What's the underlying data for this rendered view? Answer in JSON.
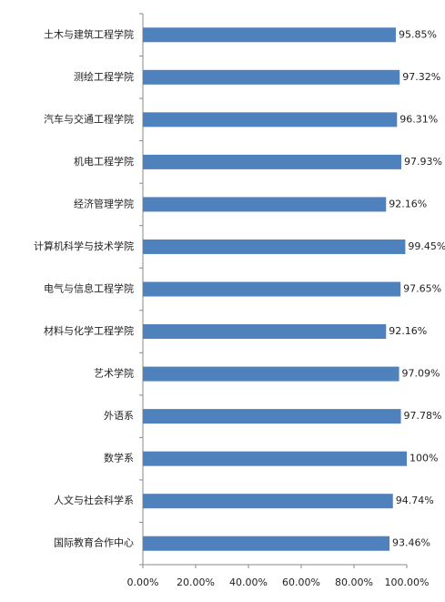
{
  "chart_data": {
    "type": "bar",
    "orientation": "horizontal",
    "color": "#4f81bd",
    "grid": false,
    "categories": [
      "土木与建筑工程学院",
      "测绘工程学院",
      "汽车与交通工程学院",
      "机电工程学院",
      "经济管理学院",
      "计算机科学与技术学院",
      "电气与信息工程学院",
      "材料与化学工程学院",
      "艺术学院",
      "外语系",
      "数学系",
      "人文与社会科学系",
      "国际教育合作中心"
    ],
    "values": [
      95.85,
      97.32,
      96.31,
      97.93,
      92.16,
      99.45,
      97.65,
      92.16,
      97.09,
      97.78,
      100,
      94.74,
      93.46
    ],
    "value_labels": [
      "95.85%",
      "97.32%",
      "96.31%",
      "97.93%",
      "92.16%",
      "99.45%",
      "97.65%",
      "92.16%",
      "97.09%",
      "97.78%",
      "100%",
      "94.74%",
      "93.46%"
    ],
    "xlim": [
      0,
      100
    ],
    "xticks": [
      {
        "value": 0,
        "label": "0.00%"
      },
      {
        "value": 20,
        "label": "20.00%"
      },
      {
        "value": 40,
        "label": "40.00%"
      },
      {
        "value": 60,
        "label": "60.00%"
      },
      {
        "value": 80,
        "label": "80.00%"
      },
      {
        "value": 100,
        "label": "100.00%"
      }
    ]
  }
}
